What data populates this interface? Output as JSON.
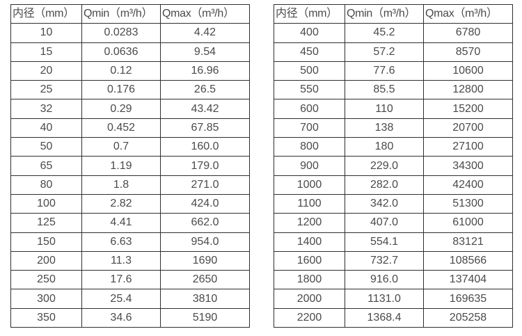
{
  "colors": {
    "background": "#ffffff",
    "border": "#2e2e2e",
    "text": "#4a4a4a"
  },
  "tables": [
    {
      "name": "flow-table-small-diameters",
      "headers": [
        "内径（mm）",
        "Qmin（m³/h）",
        "Qmax（m³/h）"
      ],
      "rows": [
        [
          "10",
          "0.0283",
          "4.42"
        ],
        [
          "15",
          "0.0636",
          "9.54"
        ],
        [
          "20",
          "0.12",
          "16.96"
        ],
        [
          "25",
          "0.176",
          "26.5"
        ],
        [
          "32",
          "0.29",
          "43.42"
        ],
        [
          "40",
          "0.452",
          "67.85"
        ],
        [
          "50",
          "0.7",
          "160.0"
        ],
        [
          "65",
          "1.19",
          "179.0"
        ],
        [
          "80",
          "1.8",
          "271.0"
        ],
        [
          "100",
          "2.82",
          "424.0"
        ],
        [
          "125",
          "4.41",
          "662.0"
        ],
        [
          "150",
          "6.63",
          "954.0"
        ],
        [
          "200",
          "11.3",
          "1690"
        ],
        [
          "250",
          "17.6",
          "2650"
        ],
        [
          "300",
          "25.4",
          "3810"
        ],
        [
          "350",
          "34.6",
          "5190"
        ]
      ]
    },
    {
      "name": "flow-table-large-diameters",
      "headers": [
        "内径（mm）",
        "Qmin（m³/h）",
        "Qmax（m³/h）"
      ],
      "rows": [
        [
          "400",
          "45.2",
          "6780"
        ],
        [
          "450",
          "57.2",
          "8570"
        ],
        [
          "500",
          "77.6",
          "10600"
        ],
        [
          "550",
          "85.5",
          "12800"
        ],
        [
          "600",
          "110",
          "15200"
        ],
        [
          "700",
          "138",
          "20700"
        ],
        [
          "800",
          "180",
          "27100"
        ],
        [
          "900",
          "229.0",
          "34300"
        ],
        [
          "1000",
          "282.0",
          "42400"
        ],
        [
          "1100",
          "342.0",
          "51300"
        ],
        [
          "1200",
          "407.0",
          "61000"
        ],
        [
          "1400",
          "554.1",
          "83121"
        ],
        [
          "1600",
          "732.7",
          "108566"
        ],
        [
          "1800",
          "916.0",
          "137404"
        ],
        [
          "2000",
          "1131.0",
          "169635"
        ],
        [
          "2200",
          "1368.4",
          "205258"
        ]
      ]
    }
  ]
}
